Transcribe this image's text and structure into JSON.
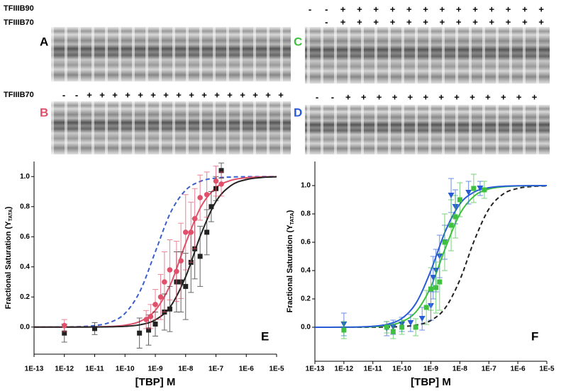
{
  "gels": {
    "header_labels": [
      "TFIIIB90",
      "TFIIIB70"
    ],
    "c_signs": [
      [
        "-",
        "-",
        "+",
        "+",
        "+",
        "+",
        "+",
        "+",
        "+",
        "+",
        "+",
        "+",
        "+",
        "+",
        "+"
      ],
      [
        "-",
        "+",
        "+",
        "+",
        "+",
        "+",
        "+",
        "+",
        "+",
        "+",
        "+",
        "+",
        "+",
        "+"
      ]
    ],
    "b_label": "TFIIIB70",
    "b_signs": [
      "-",
      "-",
      "+",
      "+",
      "+",
      "+",
      "+",
      "+",
      "+",
      "+",
      "+",
      "+",
      "+",
      "+",
      "+",
      "+",
      "+",
      "+"
    ],
    "d_signs": [
      "-",
      "-",
      "+",
      "+",
      "+",
      "+",
      "+",
      "+",
      "+",
      "+",
      "+",
      "+",
      "+",
      "+",
      "+"
    ],
    "panel_labels": [
      "A",
      "B",
      "C",
      "D"
    ]
  },
  "chart_data": [
    {
      "type": "scatter",
      "panel_label": "E",
      "xlabel": "[TBP] M",
      "ylabel": "Fractional Saturation (Y",
      "ylabel_sub": "TATA",
      "ylabel_end": ")",
      "xscale": "log",
      "xlim": [
        1e-13,
        1e-05
      ],
      "xticks": [
        {
          "value": 1e-13,
          "label": "1E-13"
        },
        {
          "value": 1e-12,
          "label": "1E-12"
        },
        {
          "value": 1e-11,
          "label": "1E-11"
        },
        {
          "value": 1e-10,
          "label": "1E-10"
        },
        {
          "value": 1e-09,
          "label": "1E-9"
        },
        {
          "value": 1e-08,
          "label": "1E-8"
        },
        {
          "value": 1e-07,
          "label": "1E-7"
        },
        {
          "value": 1e-06,
          "label": "1E-6"
        },
        {
          "value": 1e-05,
          "label": "1E-5"
        }
      ],
      "ylim": [
        -0.18,
        1.1
      ],
      "yticks": [
        {
          "value": 0,
          "label": "0.0"
        },
        0.2,
        0.4,
        0.6,
        0.8,
        {
          "value": 1,
          "label": "1.0"
        }
      ],
      "series": [
        {
          "kind": "curve",
          "dash": true,
          "color": "#3a5fcd",
          "x": [
            1e-13,
            3.16e-13,
            1e-12,
            3.16e-12,
            1e-11,
            3.16e-11,
            1e-10,
            3.16e-10,
            1e-09,
            3.16e-09,
            1e-08,
            3.16e-08,
            1e-07,
            3.16e-07,
            1e-06,
            3.16e-06,
            1e-05
          ],
          "values": [
            0.0001,
            0.0003,
            0.001,
            0.0032,
            0.0099,
            0.0307,
            0.0909,
            0.2402,
            0.5,
            0.7597,
            0.9091,
            0.9693,
            0.9901,
            0.9968,
            0.999,
            0.9997,
            0.9999
          ]
        },
        {
          "kind": "curve",
          "dash": false,
          "color": "#e0506a",
          "x": [
            1e-13,
            3.16e-13,
            1e-12,
            3.16e-12,
            1e-11,
            3.16e-11,
            1e-10,
            3.16e-10,
            1e-09,
            3.16e-09,
            1e-08,
            3.16e-08,
            1e-07,
            3.16e-07,
            1e-06,
            3.16e-06,
            1e-05
          ],
          "values": [
            0,
            0,
            0.0001,
            0.0004,
            0.0012,
            0.0039,
            0.0123,
            0.038,
            0.111,
            0.283,
            0.556,
            0.798,
            0.926,
            0.975,
            0.992,
            0.9975,
            0.9992
          ]
        },
        {
          "kind": "curve",
          "dash": false,
          "color": "#222222",
          "x": [
            1e-13,
            3.16e-13,
            1e-12,
            3.16e-12,
            1e-11,
            3.16e-11,
            1e-10,
            3.16e-10,
            1e-09,
            3.16e-09,
            1e-08,
            3.16e-08,
            1e-07,
            3.16e-07,
            1e-06,
            3.16e-06,
            1e-05
          ],
          "values": [
            0,
            0,
            0.0001,
            0.0002,
            0.0005,
            0.0016,
            0.005,
            0.0156,
            0.0477,
            0.137,
            0.334,
            0.613,
            0.834,
            0.941,
            0.98,
            0.9937,
            0.998
          ]
        },
        {
          "kind": "points",
          "marker": "square",
          "color": "#222222",
          "x": [
            1e-12,
            1e-11,
            3e-10,
            6e-10,
            1e-09,
            2e-09,
            3e-09,
            5e-09,
            7e-09,
            1e-08,
            1.5e-08,
            2e-08,
            3e-08,
            5e-08,
            7e-08,
            1e-07,
            1.5e-07
          ],
          "values": [
            -0.04,
            -0.01,
            -0.04,
            -0.02,
            0.02,
            0.1,
            0.12,
            0.3,
            0.3,
            0.27,
            0.43,
            0.52,
            0.47,
            0.63,
            0.8,
            0.92,
            1.04
          ],
          "errors": [
            0.06,
            0.04,
            0.1,
            0.1,
            0.08,
            0.12,
            0.15,
            0.2,
            0.2,
            0.22,
            0.2,
            0.2,
            0.2,
            0.15,
            0.1,
            0.08,
            0.05
          ]
        },
        {
          "kind": "points",
          "marker": "circle",
          "color": "#e0506a",
          "x": [
            1e-12,
            5e-10,
            7e-10,
            1e-09,
            1.5e-09,
            2e-09,
            3e-09,
            5e-09,
            7e-09,
            1e-08,
            1.5e-08,
            2e-08,
            3e-08,
            5e-08,
            1e-07,
            1.5e-07
          ],
          "values": [
            0.01,
            0.05,
            0.07,
            0.15,
            0.2,
            0.3,
            0.38,
            0.37,
            0.44,
            0.63,
            0.63,
            0.72,
            0.86,
            0.88,
            0.97,
            0.95
          ],
          "errors": [
            0.04,
            0.06,
            0.08,
            0.1,
            0.15,
            0.2,
            0.2,
            0.2,
            0.25,
            0.25,
            0.2,
            0.2,
            0.15,
            0.15,
            0.1,
            0.08
          ]
        }
      ]
    },
    {
      "type": "scatter",
      "panel_label": "F",
      "xlabel": "[TBP] M",
      "ylabel": "Fractional Saturation (Y",
      "ylabel_sub": "TATA",
      "ylabel_end": ")",
      "xscale": "log",
      "xlim": [
        1e-13,
        1e-05
      ],
      "xticks": [
        {
          "value": 1e-13,
          "label": "1E-13"
        },
        {
          "value": 1e-12,
          "label": "1E-12"
        },
        {
          "value": 1e-11,
          "label": "1E-11"
        },
        {
          "value": 1e-10,
          "label": "1E-10"
        },
        {
          "value": 1e-09,
          "label": "1E-9"
        },
        {
          "value": 1e-08,
          "label": "1E-8"
        },
        {
          "value": 1e-07,
          "label": "1E-7"
        },
        {
          "value": 1e-06,
          "label": "1E-6"
        },
        {
          "value": 1e-05,
          "label": "1E-5"
        }
      ],
      "ylim": [
        -0.24,
        1.17
      ],
      "yticks": [
        {
          "value": 0,
          "label": "0.0"
        },
        0.2,
        0.4,
        0.6,
        0.8,
        {
          "value": 1,
          "label": "1.0"
        }
      ],
      "series": [
        {
          "kind": "curve",
          "dash": true,
          "color": "#222222",
          "x": [
            1e-13,
            3.16e-13,
            1e-12,
            3.16e-12,
            1e-11,
            3.16e-11,
            1e-10,
            3.16e-10,
            1e-09,
            3.16e-09,
            1e-08,
            3.16e-08,
            1e-07,
            3.16e-07,
            1e-06,
            3.16e-06,
            1e-05
          ],
          "values": [
            0,
            0,
            0.0001,
            0.0002,
            0.0005,
            0.0016,
            0.005,
            0.0156,
            0.0477,
            0.137,
            0.334,
            0.613,
            0.834,
            0.941,
            0.98,
            0.9937,
            0.998
          ]
        },
        {
          "kind": "curve",
          "dash": false,
          "color": "#40c040",
          "x": [
            1e-13,
            3.16e-13,
            1e-12,
            3.16e-12,
            1e-11,
            3.16e-11,
            1e-10,
            3.16e-10,
            1e-09,
            3.16e-09,
            1e-08,
            3.16e-08,
            1e-07,
            3.16e-07,
            1e-06,
            3.16e-06,
            1e-05
          ],
          "values": [
            0,
            0.0001,
            0.0004,
            0.0013,
            0.004,
            0.0125,
            0.0385,
            0.112,
            0.286,
            0.558,
            0.8,
            0.927,
            0.976,
            0.992,
            0.9975,
            0.9992,
            0.9997
          ]
        },
        {
          "kind": "curve",
          "dash": false,
          "color": "#2a5bd7",
          "x": [
            1e-13,
            3.16e-13,
            1e-12,
            3.16e-12,
            1e-11,
            3.16e-11,
            1e-10,
            3.16e-10,
            1e-09,
            3.16e-09,
            1e-08,
            3.16e-08,
            1e-07,
            3.16e-07,
            1e-06,
            3.16e-06,
            1e-05
          ],
          "values": [
            0.0001,
            0.0002,
            0.0007,
            0.0021,
            0.0066,
            0.0207,
            0.0625,
            0.174,
            0.4,
            0.678,
            0.87,
            0.955,
            0.985,
            0.9953,
            0.9985,
            0.9995,
            0.9998
          ]
        },
        {
          "kind": "points",
          "marker": "triangle",
          "color": "#2a5bd7",
          "x": [
            1e-12,
            3e-11,
            5e-11,
            1e-10,
            2e-10,
            5e-10,
            1e-09,
            1.2e-09,
            1.5e-09,
            2e-09,
            3e-09,
            5e-09,
            7e-09,
            2e-08,
            5e-08
          ],
          "values": [
            0.02,
            -0.01,
            0,
            0.02,
            0.03,
            0.06,
            0.15,
            0.35,
            0.4,
            0.5,
            0.6,
            0.93,
            0.85,
            0.95,
            0.98
          ],
          "errors": [
            0.08,
            0.05,
            0.05,
            0.05,
            0.06,
            0.08,
            0.1,
            0.15,
            0.15,
            0.15,
            0.12,
            0.12,
            0.12,
            0.08,
            0.05
          ]
        },
        {
          "kind": "points",
          "marker": "square",
          "color": "#40c040",
          "x": [
            1e-12,
            3e-11,
            5e-11,
            1e-10,
            3e-10,
            7e-10,
            1e-09,
            1.5e-09,
            2e-09,
            3e-09,
            5e-09,
            7e-09,
            1e-08,
            3e-08,
            7e-08
          ],
          "values": [
            -0.02,
            0,
            -0.03,
            0,
            0,
            0.14,
            0.27,
            0.28,
            0.32,
            0.6,
            0.72,
            0.78,
            0.9,
            0.98,
            0.97
          ],
          "errors": [
            0.06,
            0.04,
            0.05,
            0.05,
            0.06,
            0.12,
            0.15,
            0.18,
            0.2,
            0.2,
            0.18,
            0.15,
            0.12,
            0.1,
            0.06
          ]
        }
      ]
    }
  ]
}
